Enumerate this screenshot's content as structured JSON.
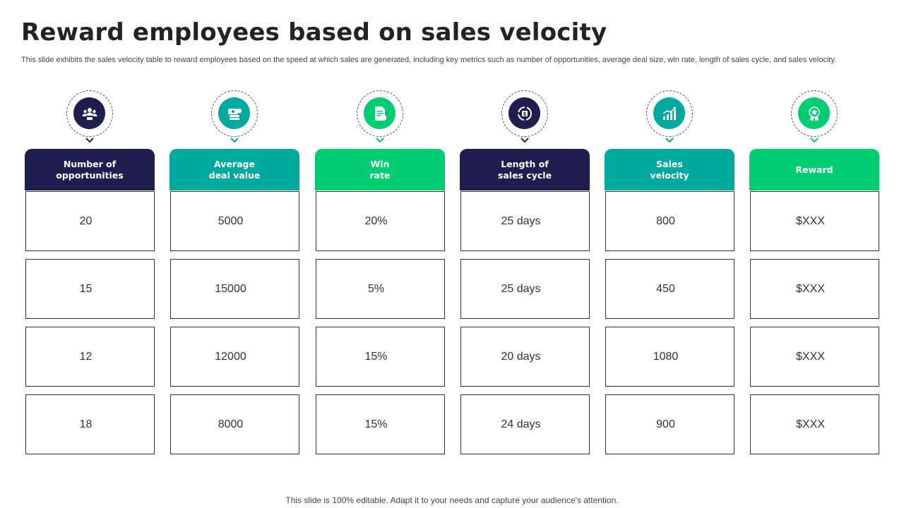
{
  "title": "Reward employees based on sales velocity",
  "subtitle": "This slide exhibits the sales velocity table to reward employees based on the speed at which sales are generated, including key metrics such as number of opportunities, average deal size, win rate, length of sales cycle, and sales velocity.",
  "colors": {
    "navy": "#1e1e4f",
    "teal": "#00a99d",
    "green": "#00cc72"
  },
  "columns": [
    {
      "header": "Number of\nopportunities",
      "color": "#1e1e4f",
      "icon": "team-people-icon",
      "cells": [
        "20",
        "15",
        "12",
        "18"
      ]
    },
    {
      "header": "Average\ndeal value",
      "color": "#00a99d",
      "icon": "money-stack-icon",
      "cells": [
        "5000",
        "15000",
        "12000",
        "8000"
      ]
    },
    {
      "header": "Win\nrate",
      "color": "#00cc72",
      "icon": "report-document-icon",
      "cells": [
        "20%",
        "5%",
        "15%",
        "15%"
      ]
    },
    {
      "header": "Length of\nsales cycle",
      "color": "#1e1e4f",
      "icon": "dollar-cycle-icon",
      "cells": [
        "25 days",
        "25 days",
        "20 days",
        "24 days"
      ]
    },
    {
      "header": "Sales\nvelocity",
      "color": "#00a99d",
      "icon": "growth-chart-icon",
      "cells": [
        "800",
        "450",
        "1080",
        "900"
      ]
    },
    {
      "header": "Reward",
      "color": "#00cc72",
      "icon": "award-badge-icon",
      "cells": [
        "$XXX",
        "$XXX",
        "$XXX",
        "$XXX"
      ]
    }
  ],
  "footer": "This slide is 100% editable. Adapt it to your needs and capture your audience's attention."
}
